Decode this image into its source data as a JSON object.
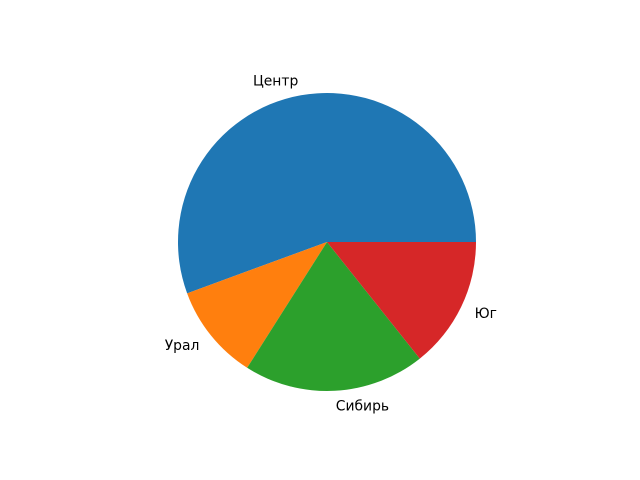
{
  "figure": {
    "background": "#ffffff"
  },
  "chart_data": {
    "type": "pie",
    "title": "",
    "labels": [
      "Центр",
      "Урал",
      "Сибирь",
      "Юг"
    ],
    "values_percent": [
      55.6,
      10.4,
      19.7,
      14.3
    ],
    "colors": [
      "#1f77b4",
      "#ff7f0e",
      "#2ca02c",
      "#d62728"
    ],
    "start_angle_deg": 0,
    "direction": "counterclockwise",
    "label_distance": 1.1,
    "legend_position": "none",
    "grid": false,
    "text_color": "#000000"
  }
}
